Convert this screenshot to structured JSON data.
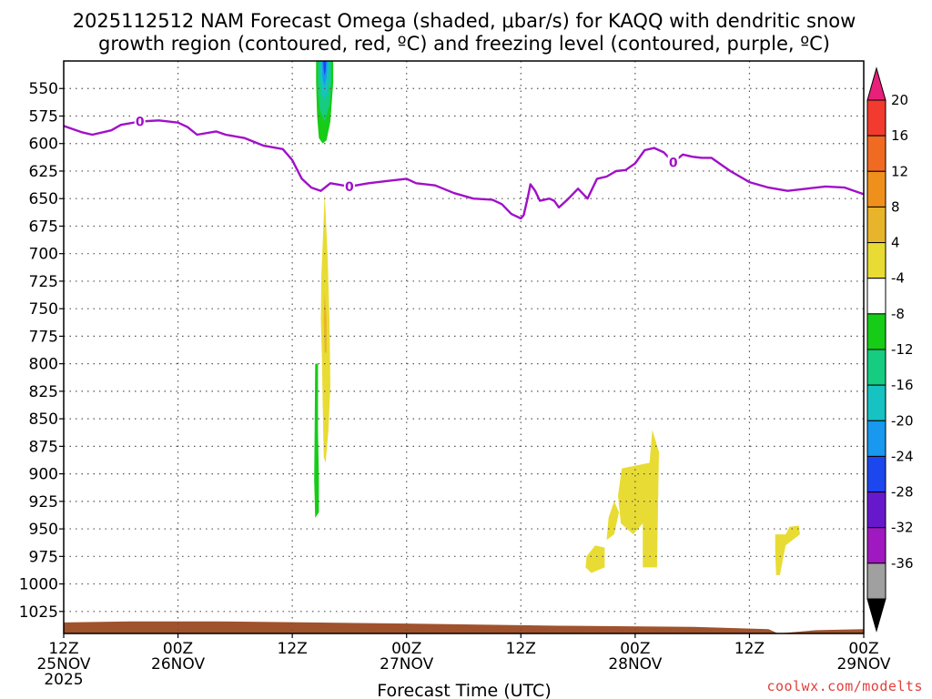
{
  "chart_data": {
    "type": "time-height cross section",
    "title_line1": "2025112512 NAM Forecast Omega (shaded, μbar/s) for KAQQ with dendritic snow",
    "title_line2": "growth region (contoured, red, ºC) and freezing level (contoured, purple, ºC)",
    "xlabel": "Forecast Time (UTC)",
    "credit": "coolwx.com/modelts",
    "x_hours_range": [
      0,
      84
    ],
    "y_range_hpa": [
      525,
      1045
    ],
    "y_ticks": [
      550,
      575,
      600,
      625,
      650,
      675,
      700,
      725,
      750,
      775,
      800,
      825,
      850,
      875,
      900,
      925,
      950,
      975,
      1000,
      1025
    ],
    "x_ticks": [
      {
        "hour": 0,
        "line1": "12Z",
        "line2": "25NOV",
        "line3": "2025"
      },
      {
        "hour": 12,
        "line1": "00Z",
        "line2": "26NOV",
        "line3": ""
      },
      {
        "hour": 24,
        "line1": "12Z",
        "line2": "",
        "line3": ""
      },
      {
        "hour": 36,
        "line1": "00Z",
        "line2": "27NOV",
        "line3": ""
      },
      {
        "hour": 48,
        "line1": "12Z",
        "line2": "",
        "line3": ""
      },
      {
        "hour": 60,
        "line1": "00Z",
        "line2": "28NOV",
        "line3": ""
      },
      {
        "hour": 72,
        "line1": "12Z",
        "line2": "",
        "line3": ""
      },
      {
        "hour": 84,
        "line1": "00Z",
        "line2": "29NOV",
        "line3": ""
      }
    ],
    "colorbar": {
      "labels": [
        "20",
        "16",
        "12",
        "8",
        "4",
        "-4",
        "-8",
        "-12",
        "-16",
        "-20",
        "-24",
        "-28",
        "-32",
        "-36"
      ],
      "bins": [
        {
          "color": "#e8207a"
        },
        {
          "color": "#f23a2e"
        },
        {
          "color": "#f06a22"
        },
        {
          "color": "#f0901c"
        },
        {
          "color": "#e8b42c"
        },
        {
          "color": "#e8dc34"
        },
        {
          "color": "#ffffff"
        },
        {
          "color": "#16cc16"
        },
        {
          "color": "#16cc80"
        },
        {
          "color": "#16c2c2"
        },
        {
          "color": "#1898ee"
        },
        {
          "color": "#1c46ee"
        },
        {
          "color": "#6818cc"
        },
        {
          "color": "#a018c0"
        },
        {
          "color": "#a0a0a0"
        },
        {
          "color": "#000000"
        }
      ]
    },
    "freezing_level": {
      "label": "0",
      "color": "#a010c8",
      "points": [
        [
          0,
          584
        ],
        [
          2,
          590
        ],
        [
          3,
          592
        ],
        [
          5,
          588
        ],
        [
          6,
          583
        ],
        [
          8,
          580
        ],
        [
          10,
          579
        ],
        [
          12,
          581
        ],
        [
          13,
          585
        ],
        [
          14,
          592
        ],
        [
          16,
          589
        ],
        [
          17,
          592
        ],
        [
          19,
          595
        ],
        [
          21,
          602
        ],
        [
          23,
          605
        ],
        [
          24,
          615
        ],
        [
          25,
          632
        ],
        [
          26,
          640
        ],
        [
          27,
          643
        ],
        [
          28,
          636
        ],
        [
          30,
          639
        ],
        [
          32,
          636
        ],
        [
          34,
          634
        ],
        [
          36,
          632
        ],
        [
          37,
          636
        ],
        [
          39,
          638
        ],
        [
          41,
          645
        ],
        [
          43,
          650
        ],
        [
          45,
          651
        ],
        [
          46,
          655
        ],
        [
          47,
          664
        ],
        [
          48,
          668
        ],
        [
          48.3,
          665
        ],
        [
          48.7,
          650
        ],
        [
          49,
          637
        ],
        [
          49.5,
          643
        ],
        [
          50,
          652
        ],
        [
          51,
          650
        ],
        [
          51.5,
          652
        ],
        [
          52,
          658
        ],
        [
          53,
          650
        ],
        [
          54,
          641
        ],
        [
          55,
          650
        ],
        [
          56,
          632
        ],
        [
          57,
          630
        ],
        [
          58,
          625
        ],
        [
          59,
          624
        ],
        [
          60,
          618
        ],
        [
          61,
          606
        ],
        [
          62,
          604
        ],
        [
          63,
          608
        ],
        [
          64,
          617
        ],
        [
          65,
          610
        ],
        [
          66,
          612
        ],
        [
          67,
          613
        ],
        [
          68,
          613
        ],
        [
          70,
          625
        ],
        [
          72,
          635
        ],
        [
          74,
          640
        ],
        [
          76,
          643
        ],
        [
          78,
          641
        ],
        [
          80,
          639
        ],
        [
          82,
          640
        ],
        [
          84,
          646
        ]
      ]
    },
    "surface": {
      "color": "#a0522d",
      "points": [
        [
          0,
          1035
        ],
        [
          7,
          1034
        ],
        [
          16,
          1034
        ],
        [
          26,
          1035
        ],
        [
          36,
          1036
        ],
        [
          52,
          1038
        ],
        [
          66,
          1039
        ],
        [
          74,
          1041
        ],
        [
          75,
          1045
        ],
        [
          79,
          1042
        ],
        [
          84,
          1041
        ]
      ]
    },
    "shaded_areas": [
      {
        "value_range": "-8 to -4",
        "color": "#16cc16",
        "points": [
          [
            26.5,
            525
          ],
          [
            28.3,
            525
          ],
          [
            28.3,
            545
          ],
          [
            28.0,
            580
          ],
          [
            27.6,
            597
          ],
          [
            27.2,
            600
          ],
          [
            26.8,
            595
          ],
          [
            26.6,
            575
          ],
          [
            26.5,
            545
          ]
        ]
      },
      {
        "value_range": "-12 to -8",
        "color": "#16cc80",
        "points": [
          [
            26.7,
            525
          ],
          [
            28.1,
            525
          ],
          [
            28.1,
            545
          ],
          [
            27.9,
            565
          ],
          [
            27.4,
            580
          ],
          [
            26.9,
            570
          ],
          [
            26.7,
            550
          ]
        ]
      },
      {
        "value_range": "-16 to -12",
        "color": "#16c2c2",
        "points": [
          [
            26.9,
            525
          ],
          [
            27.9,
            525
          ],
          [
            27.8,
            545
          ],
          [
            27.5,
            560
          ],
          [
            27.1,
            555
          ],
          [
            26.9,
            540
          ]
        ]
      },
      {
        "value_range": "-20 to -16",
        "color": "#1898ee",
        "points": [
          [
            27.1,
            525
          ],
          [
            27.7,
            525
          ],
          [
            27.6,
            540
          ],
          [
            27.4,
            548
          ],
          [
            27.2,
            542
          ]
        ]
      },
      {
        "value_range": "-24 to -20",
        "color": "#1c46ee",
        "points": [
          [
            27.25,
            525
          ],
          [
            27.55,
            525
          ],
          [
            27.5,
            534
          ],
          [
            27.4,
            538
          ],
          [
            27.3,
            533
          ]
        ]
      },
      {
        "value_range": "4 to 8",
        "color": "#e8dc34",
        "points": [
          [
            27.3,
            885
          ],
          [
            27.2,
            840
          ],
          [
            27.1,
            790
          ],
          [
            27.0,
            760
          ],
          [
            27.05,
            720
          ],
          [
            27.2,
            690
          ],
          [
            27.4,
            645
          ],
          [
            27.7,
            700
          ],
          [
            27.9,
            760
          ],
          [
            28.0,
            820
          ],
          [
            27.8,
            860
          ],
          [
            27.5,
            890
          ]
        ]
      },
      {
        "value_range": "8 to 12",
        "color": "#e8b42c",
        "points": [
          [
            27.4,
            790
          ],
          [
            27.3,
            760
          ],
          [
            27.4,
            735
          ],
          [
            27.6,
            760
          ],
          [
            27.6,
            790
          ]
        ]
      },
      {
        "value_range": "-8 to -4",
        "color": "#16cc16",
        "points": [
          [
            26.4,
            800
          ],
          [
            26.7,
            800
          ],
          [
            26.7,
            860
          ],
          [
            26.8,
            905
          ],
          [
            26.8,
            935
          ],
          [
            26.4,
            940
          ],
          [
            26.3,
            905
          ],
          [
            26.35,
            860
          ]
        ]
      },
      {
        "value_range": "4 to 8",
        "color": "#e8dc34",
        "points": [
          [
            58.6,
            895
          ],
          [
            61.5,
            890
          ],
          [
            61.8,
            860
          ],
          [
            62.5,
            880
          ],
          [
            62.3,
            985
          ],
          [
            60.8,
            985
          ],
          [
            60.8,
            945
          ],
          [
            59.8,
            955
          ],
          [
            58.5,
            945
          ],
          [
            58.2,
            920
          ]
        ]
      },
      {
        "value_range": "4 to 8",
        "color": "#e8dc34",
        "points": [
          [
            57.2,
            940
          ],
          [
            57.8,
            925
          ],
          [
            58.3,
            935
          ],
          [
            57.8,
            955
          ],
          [
            57.0,
            960
          ]
        ]
      },
      {
        "value_range": "4 to 8",
        "color": "#e8dc34",
        "points": [
          [
            54.9,
            975
          ],
          [
            55.8,
            965
          ],
          [
            56.8,
            967
          ],
          [
            56.8,
            985
          ],
          [
            55.4,
            990
          ],
          [
            54.8,
            985
          ]
        ]
      },
      {
        "value_range": "4 to 8",
        "color": "#e8dc34",
        "points": [
          [
            74.7,
            955
          ],
          [
            75.8,
            955
          ],
          [
            76.2,
            948
          ],
          [
            77.2,
            947
          ],
          [
            77.3,
            955
          ],
          [
            75.8,
            965
          ],
          [
            75.2,
            992
          ],
          [
            74.8,
            992
          ],
          [
            74.7,
            970
          ]
        ]
      }
    ]
  }
}
